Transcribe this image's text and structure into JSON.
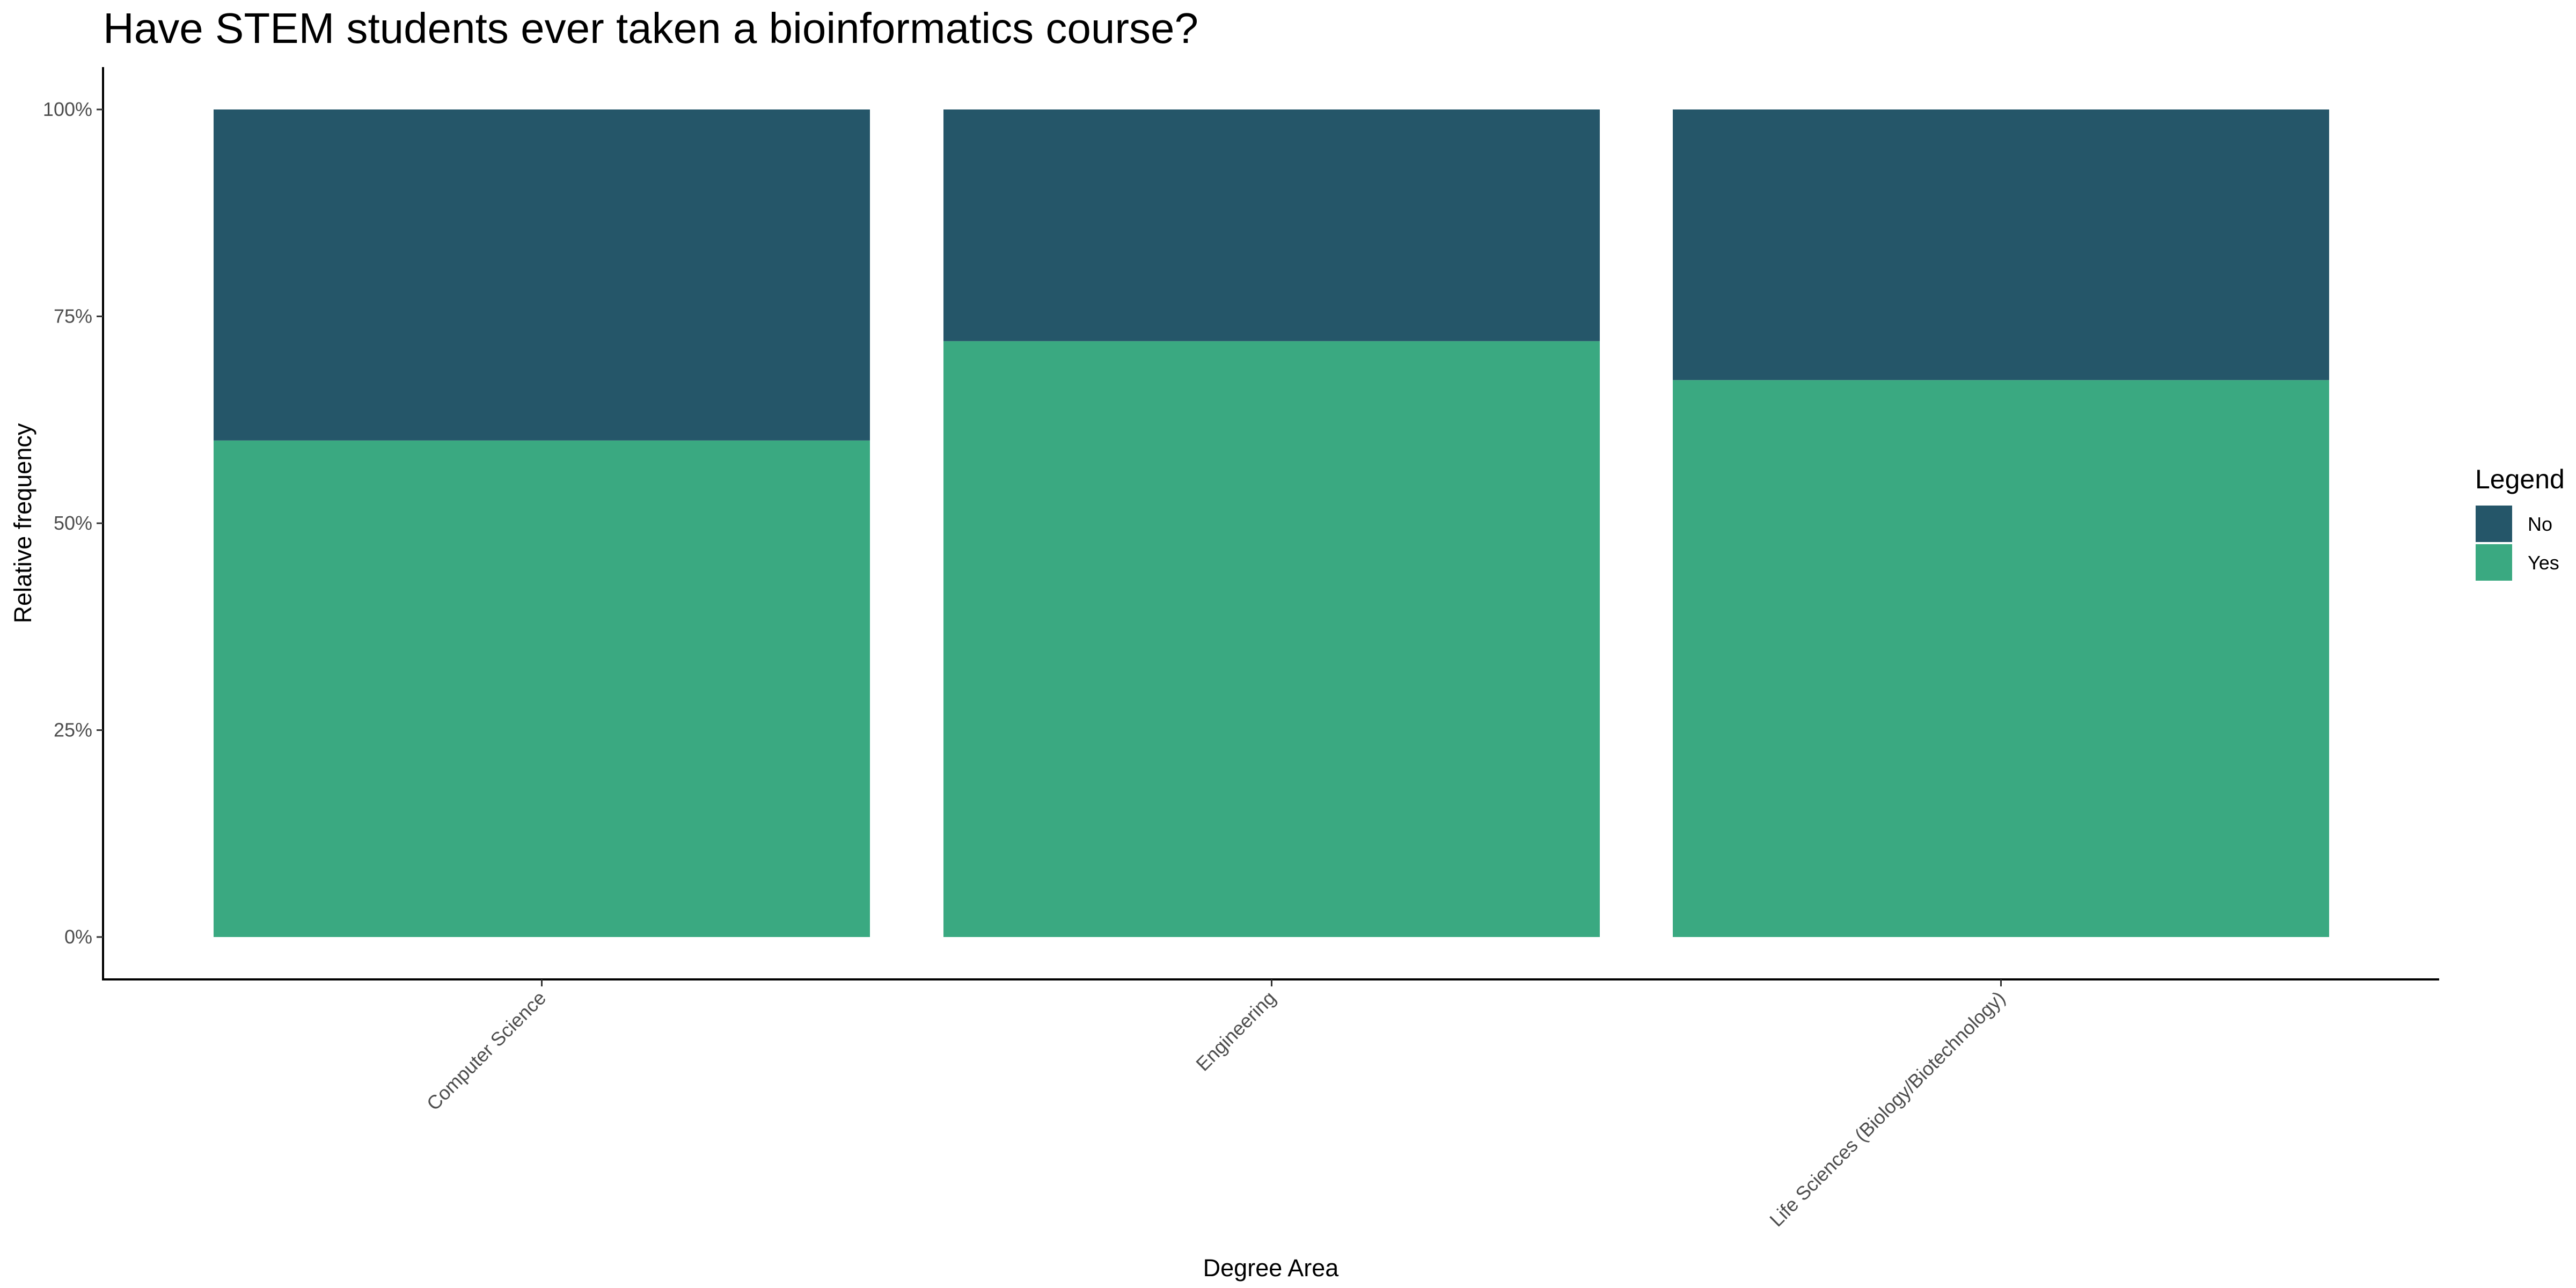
{
  "chart_data": {
    "type": "bar",
    "stacked": true,
    "title": "Have STEM students ever taken a bioinformatics course?",
    "xlabel": "Degree Area",
    "ylabel": "Relative frequency",
    "categories": [
      "Computer Science",
      "Engineering",
      "Life Sciences (Biology/Biotechnology)"
    ],
    "series": [
      {
        "name": "Yes",
        "values": [
          0.6,
          0.72,
          0.673
        ],
        "color": "#3aa981"
      },
      {
        "name": "No",
        "values": [
          0.4,
          0.28,
          0.327
        ],
        "color": "#255669"
      }
    ],
    "ylim": [
      0,
      1
    ],
    "yticks": [
      0,
      0.25,
      0.5,
      0.75,
      1.0
    ],
    "ytick_labels": [
      "0%",
      "25%",
      "50%",
      "75%",
      "100%"
    ],
    "legend": {
      "title": "Legend",
      "items": [
        "No",
        "Yes"
      ],
      "position": "right"
    },
    "grid": false
  }
}
